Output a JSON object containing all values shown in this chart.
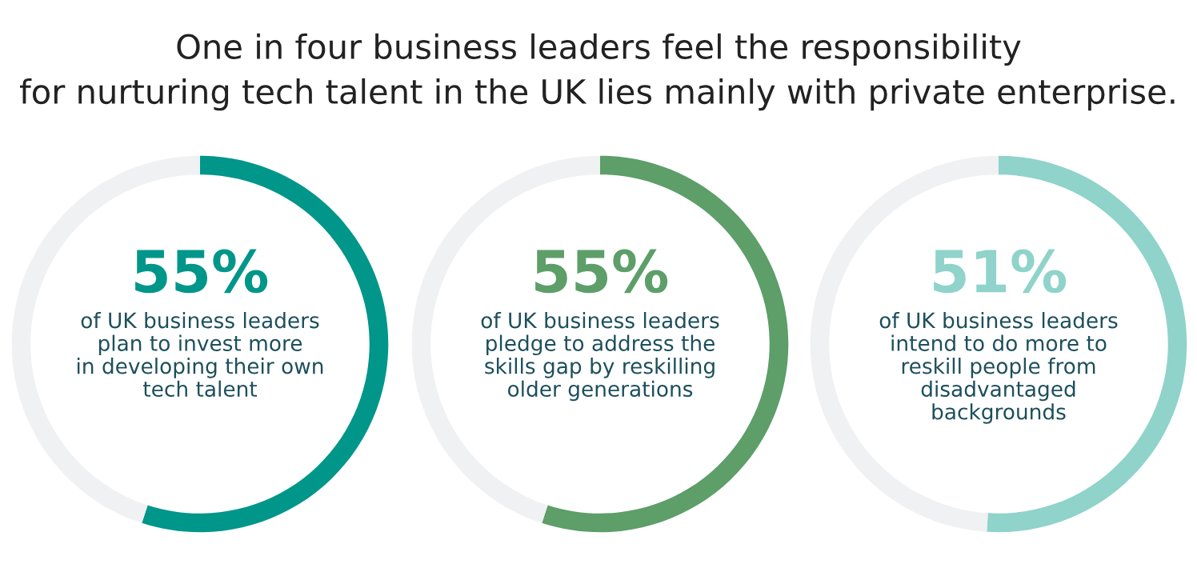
{
  "chart_data": [
    {
      "type": "donut",
      "title": "One in four business leaders feel the responsibility\nfor nurturing tech talent in the UK lies mainly with private enterprise.",
      "categories": [
        null,
        null
      ],
      "values": [
        55,
        45
      ],
      "colors": [
        "#00968a",
        "#f0f1f3"
      ],
      "value_labels": [
        "55%",
        null
      ],
      "annotations": [
        "of UK business leaders\nplan to invest more\nin developing their own\ntech talent"
      ],
      "legend": false
    },
    {
      "type": "donut",
      "categories": [
        null,
        null
      ],
      "values": [
        55,
        45
      ],
      "colors": [
        "#5d9e69",
        "#f0f1f3"
      ],
      "value_labels": [
        "55%",
        null
      ],
      "annotations": [
        "of UK business leaders\npledge to address the\nskills gap by reskilling\nolder generations"
      ],
      "legend": false
    },
    {
      "type": "donut",
      "categories": [
        null,
        null
      ],
      "values": [
        51,
        49
      ],
      "colors": [
        "#8fd3cb",
        "#f0f1f3"
      ],
      "value_labels": [
        "51%",
        null
      ],
      "annotations": [
        "of UK business leaders\nintend to do more to\nreskill people from\ndisadvantaged\nbackgrounds"
      ],
      "legend": false
    }
  ]
}
